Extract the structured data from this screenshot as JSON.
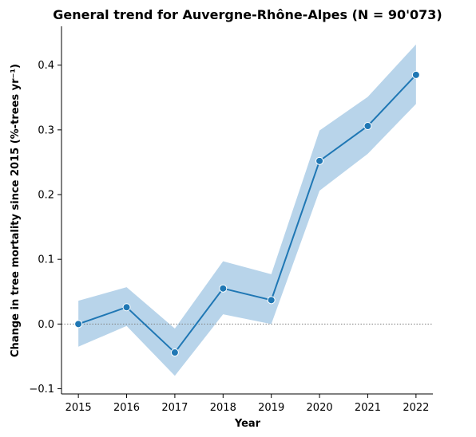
{
  "chart_data": {
    "type": "line",
    "title": "General trend for Auvergne-Rhône-Alpes  (N = 90'073)",
    "xlabel": "Year",
    "ylabel": "Change in tree mortality since 2015 (%-trees yr⁻¹)",
    "x": [
      "2015",
      "2016",
      "2017",
      "2018",
      "2019",
      "2020",
      "2021",
      "2022"
    ],
    "series": [
      {
        "values": [
          0.0,
          0.026,
          -0.044,
          0.055,
          0.037,
          0.252,
          0.306,
          0.385
        ],
        "ci_lower": [
          -0.035,
          -0.003,
          -0.08,
          0.015,
          0.0,
          0.206,
          0.263,
          0.34
        ],
        "ci_upper": [
          0.036,
          0.057,
          -0.007,
          0.097,
          0.077,
          0.299,
          0.351,
          0.432
        ]
      }
    ],
    "yticks": [
      "−0.1",
      "0.0",
      "0.1",
      "0.2",
      "0.3",
      "0.4"
    ],
    "ytick_values": [
      -0.1,
      0.0,
      0.1,
      0.2,
      0.3,
      0.4
    ],
    "ylim": [
      -0.108,
      0.46
    ],
    "xlim": [
      2014.65,
      2022.35
    ],
    "reference_line": 0.0,
    "grid": false,
    "colors": {
      "line": "#1f77b4",
      "band": "#b8d4ea",
      "reference": "#808080"
    }
  }
}
